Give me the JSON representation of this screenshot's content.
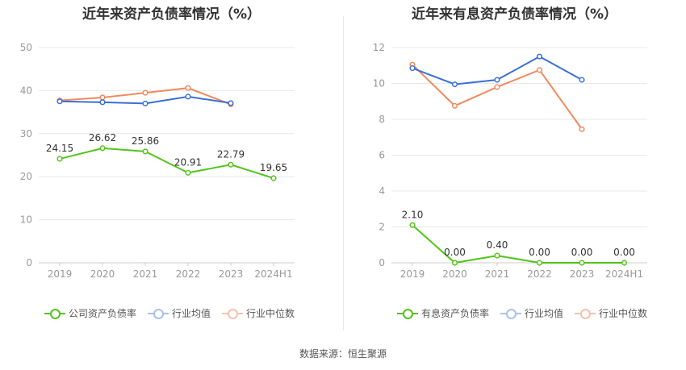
{
  "source_label": "数据来源：恒生聚源",
  "chart_data": [
    {
      "type": "line",
      "title": "近年来资产负债率情况（%）",
      "categories": [
        "2019",
        "2020",
        "2021",
        "2022",
        "2023",
        "2024H1"
      ],
      "ylim": [
        0,
        50
      ],
      "yticks": [
        0,
        10,
        20,
        30,
        40,
        50
      ],
      "grid": true,
      "legend_position": "bottom",
      "series": [
        {
          "name": "公司资产负债率",
          "color": "#52c41a",
          "values": [
            24.15,
            26.62,
            25.86,
            20.91,
            22.79,
            19.65
          ],
          "labels": [
            "24.15",
            "26.62",
            "25.86",
            "20.91",
            "22.79",
            "19.65"
          ]
        },
        {
          "name": "行业均值",
          "color": "#3a6fd8",
          "values": [
            37.5,
            37.3,
            37.0,
            38.6,
            37.1,
            null
          ]
        },
        {
          "name": "行业中位数",
          "color": "#f08a5d",
          "values": [
            37.7,
            38.4,
            39.5,
            40.6,
            36.8,
            null
          ]
        }
      ]
    },
    {
      "type": "line",
      "title": "近年来有息资产负债率情况（%）",
      "categories": [
        "2019",
        "2020",
        "2021",
        "2022",
        "2023",
        "2024H1"
      ],
      "ylim": [
        0,
        12
      ],
      "yticks": [
        0,
        2,
        4,
        6,
        8,
        10,
        12
      ],
      "grid": true,
      "legend_position": "bottom",
      "series": [
        {
          "name": "有息资产负债率",
          "color": "#52c41a",
          "values": [
            2.1,
            0.0,
            0.4,
            0.0,
            0.0,
            0.0
          ],
          "labels": [
            "2.10",
            "0.00",
            "0.40",
            "0.00",
            "0.00",
            "0.00"
          ]
        },
        {
          "name": "行业均值",
          "color": "#3a6fd8",
          "values": [
            10.85,
            9.95,
            10.2,
            11.5,
            10.2,
            null
          ]
        },
        {
          "name": "行业中位数",
          "color": "#f08a5d",
          "values": [
            11.05,
            8.75,
            9.8,
            10.75,
            7.45,
            null
          ]
        }
      ]
    }
  ]
}
